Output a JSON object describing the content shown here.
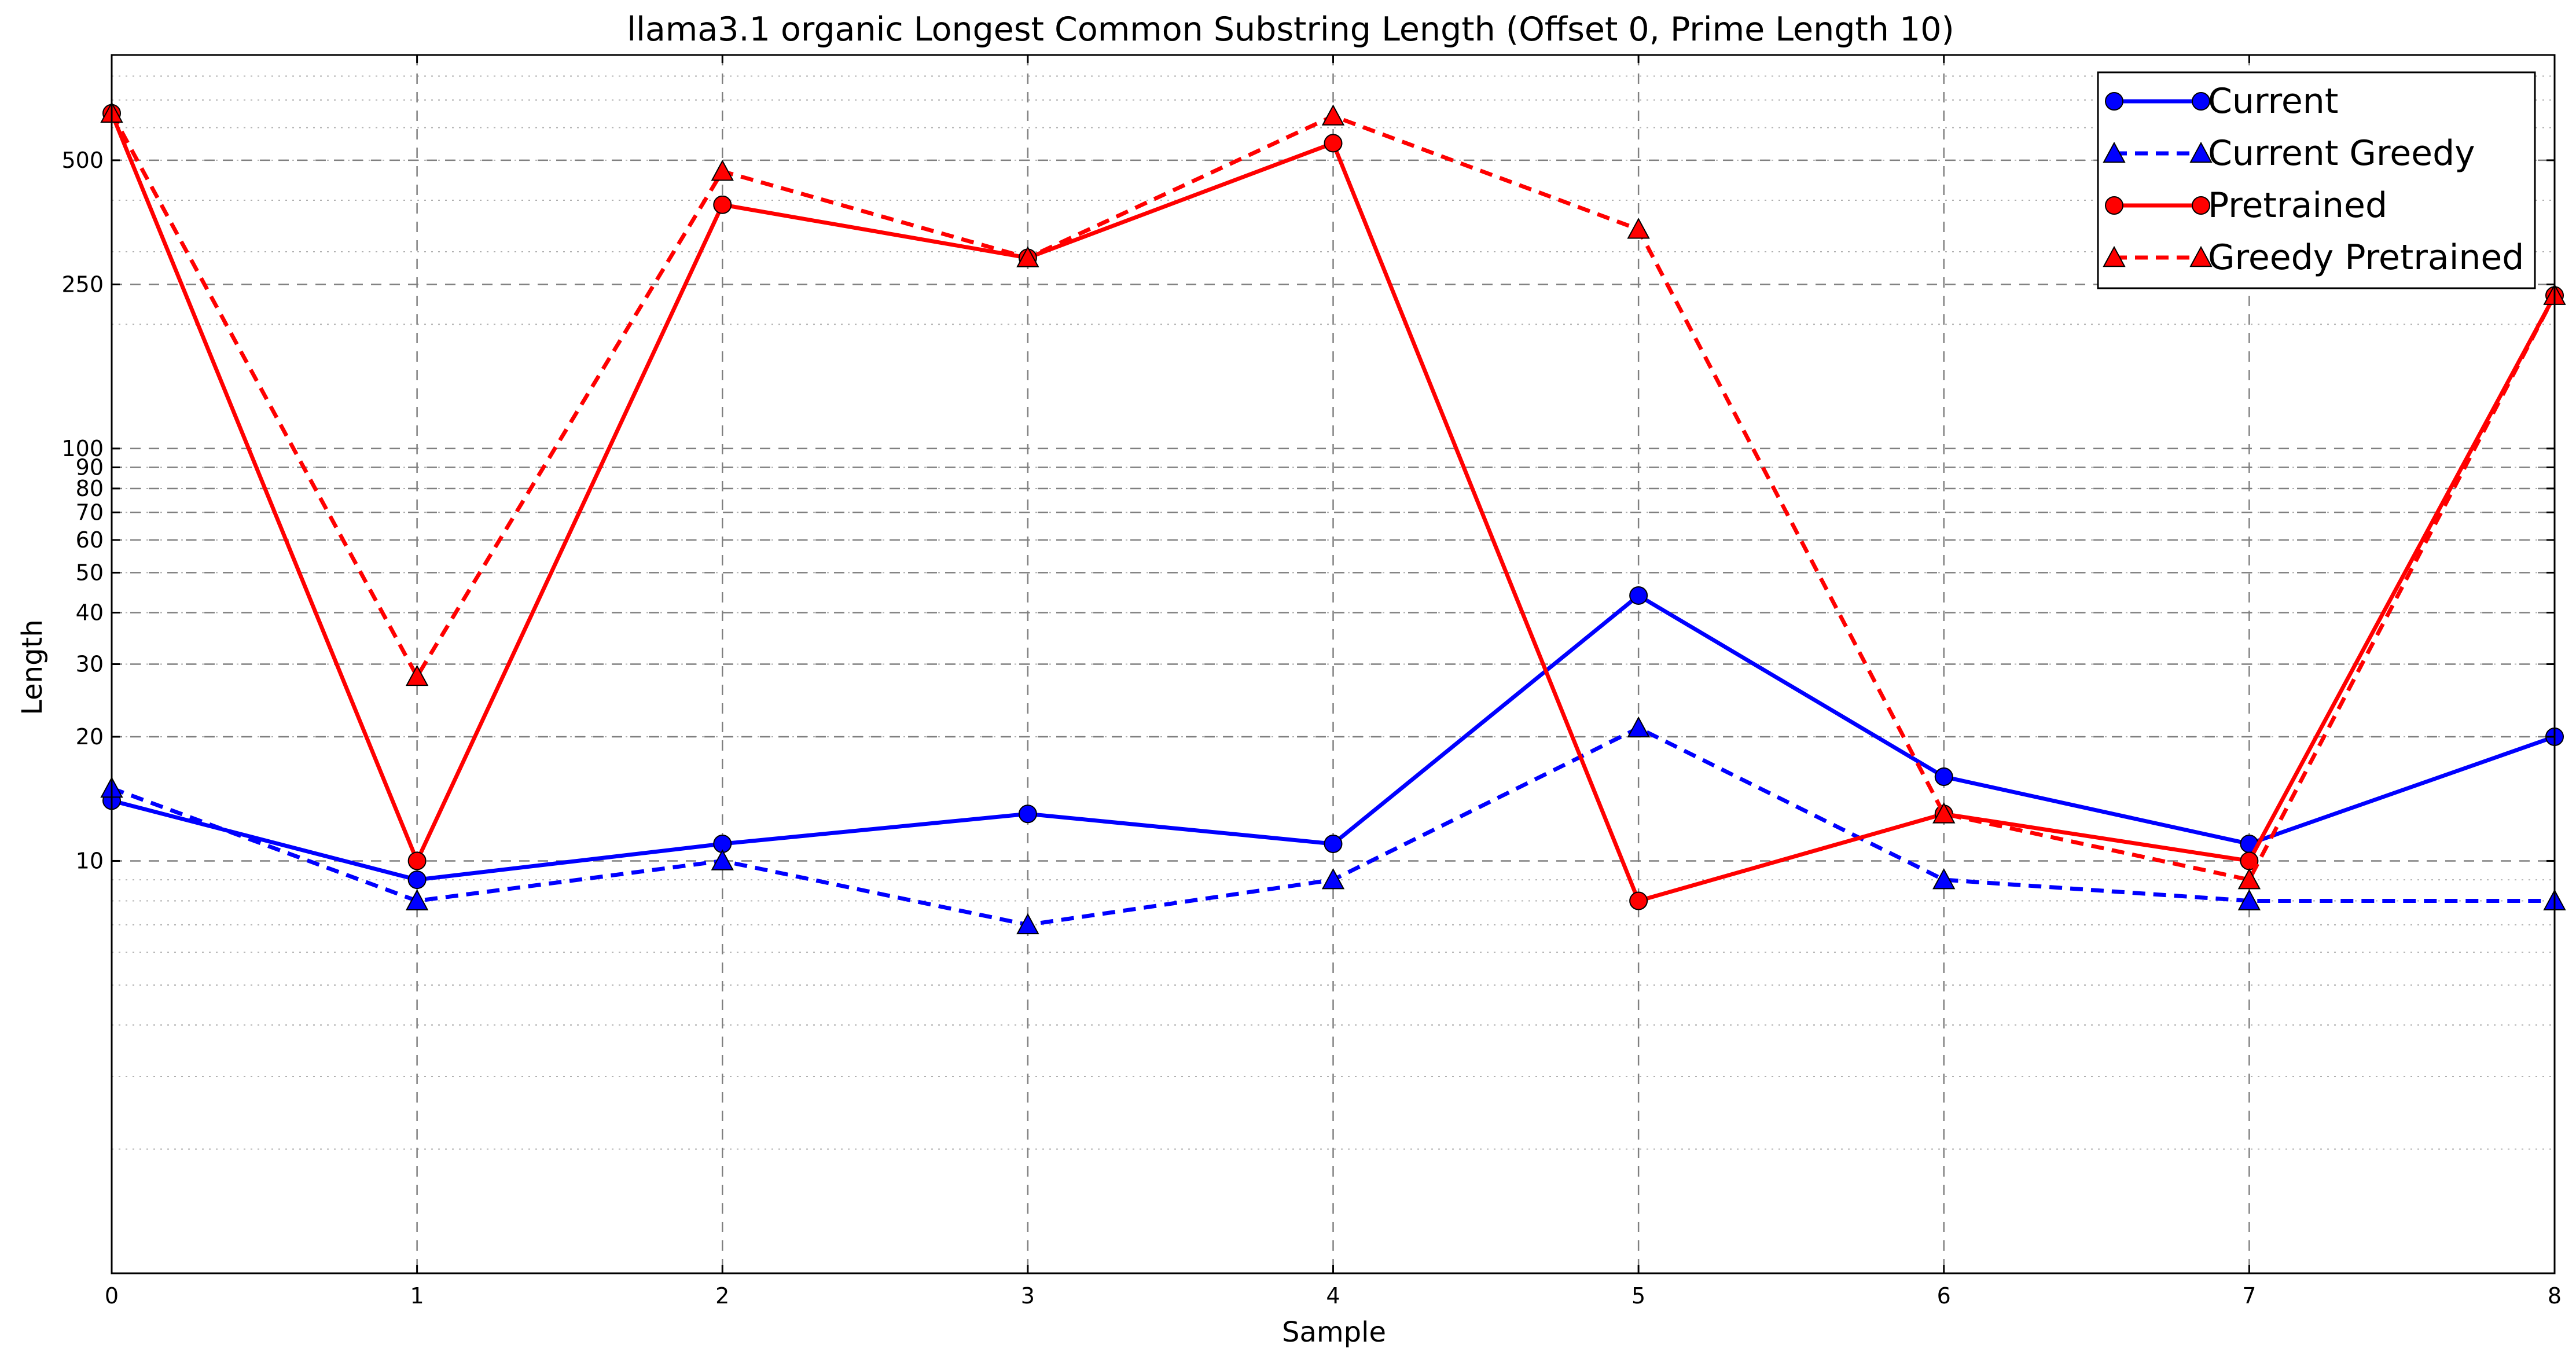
{
  "chart_data": {
    "type": "line",
    "title": "llama3.1 organic Longest Common Substring Length (Offset 0, Prime Length 10)",
    "xlabel": "Sample",
    "ylabel": "Length",
    "xlim": [
      0,
      8
    ],
    "ylim": [
      1,
      900
    ],
    "y_scale": "log",
    "x_ticks": [
      0,
      1,
      2,
      3,
      4,
      5,
      6,
      7,
      8
    ],
    "y_tick_values": [
      10,
      20,
      30,
      40,
      50,
      60,
      70,
      80,
      90,
      100,
      250,
      500
    ],
    "y_tick_labels": [
      "10",
      "20",
      "30",
      "40",
      "50",
      "60",
      "70",
      "80",
      "90",
      "100",
      "250",
      "500"
    ],
    "grid": true,
    "legend_position": "top-right",
    "colors": {
      "blue": "#0000ff",
      "red": "#ff0000"
    },
    "series": [
      {
        "name": "Current",
        "color": "#0000ff",
        "line_style": "solid",
        "marker": "circle",
        "x": [
          0,
          1,
          2,
          3,
          4,
          5,
          6,
          7,
          8
        ],
        "values": [
          14,
          9,
          11,
          13,
          11,
          44,
          16,
          11,
          20
        ]
      },
      {
        "name": "Current Greedy",
        "color": "#0000ff",
        "line_style": "dashed",
        "marker": "triangle",
        "x": [
          0,
          1,
          2,
          3,
          4,
          5,
          6,
          7,
          8
        ],
        "values": [
          15,
          8,
          10,
          7,
          9,
          21,
          9,
          8,
          8
        ]
      },
      {
        "name": "Pretrained",
        "color": "#ff0000",
        "line_style": "solid",
        "marker": "circle",
        "x": [
          0,
          1,
          2,
          3,
          4,
          5,
          6,
          7,
          8
        ],
        "values": [
          650,
          10,
          390,
          290,
          550,
          8,
          13,
          10,
          235
        ]
      },
      {
        "name": "Greedy Pretrained",
        "color": "#ff0000",
        "line_style": "dashed",
        "marker": "triangle",
        "x": [
          0,
          1,
          2,
          3,
          4,
          5,
          6,
          7,
          8
        ],
        "values": [
          650,
          28,
          470,
          290,
          640,
          340,
          13,
          9,
          235
        ]
      }
    ]
  }
}
